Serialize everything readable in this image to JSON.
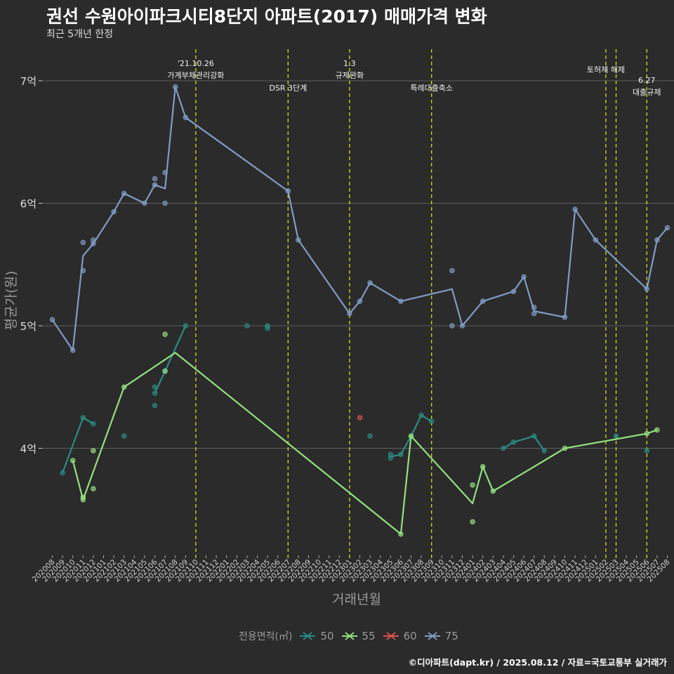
{
  "title": "권선 수원아이파크시티8단지 아파트(2017) 매매가격 변화",
  "subtitle": "최근 5개년 한정",
  "caption": "©디아파트(dapt.kr) / 2025.08.12 / 자료=국토교통부 실거래가",
  "colors": {
    "background": "#2b2b2b",
    "grid": "#5e5e5e",
    "event_line": "#d4dd1f",
    "s50": "#2a8a83",
    "s55": "#93e07f",
    "s60": "#d9534f",
    "s75": "#7f9cc6"
  },
  "chart_data": {
    "type": "line",
    "xlabel": "거래년월",
    "ylabel": "평균가(원)",
    "ylim": [
      3.1,
      7.35
    ],
    "y_ticks": [
      {
        "value": 4,
        "label": "4억"
      },
      {
        "value": 5,
        "label": "5억"
      },
      {
        "value": 6,
        "label": "6억"
      },
      {
        "value": 7,
        "label": "7억"
      }
    ],
    "x_categories": [
      "202008",
      "202009",
      "202010",
      "202011",
      "202012",
      "202101",
      "202102",
      "202103",
      "202104",
      "202105",
      "202106",
      "202107",
      "202108",
      "202109",
      "202110",
      "202111",
      "202112",
      "202201",
      "202202",
      "202203",
      "202204",
      "202205",
      "202206",
      "202207",
      "202208",
      "202209",
      "202210",
      "202211",
      "202212",
      "202301",
      "202302",
      "202303",
      "202304",
      "202305",
      "202306",
      "202307",
      "202308",
      "202309",
      "202310",
      "202311",
      "202312",
      "202401",
      "202402",
      "202403",
      "202404",
      "202405",
      "202406",
      "202407",
      "202408",
      "202409",
      "202410",
      "202411",
      "202412",
      "202501",
      "202502",
      "202503",
      "202504",
      "202505",
      "202506",
      "202507",
      "202508"
    ],
    "grid": true,
    "legend_title": "전용면적(㎡)",
    "legend_position": "bottom",
    "events": [
      {
        "x": "202110",
        "label": "'21.10.26\n가계부채관리강화",
        "row": 1
      },
      {
        "x": "202207",
        "label": "DSR 3단계",
        "row": 2
      },
      {
        "x": "202301",
        "label": "1.3\n규제완화",
        "row": 1
      },
      {
        "x": "202309",
        "label": "특례대출축소",
        "row": 2
      },
      {
        "x": "202502",
        "label": "토허제 해제",
        "row": 1
      },
      {
        "x": "202503",
        "label": "",
        "row": 1
      },
      {
        "x": "202506",
        "label": "6.27\n대출규제",
        "row": 2
      }
    ],
    "series": [
      {
        "name": "50",
        "color": "#2a8a83",
        "line": [
          [
            "202009",
            3.8
          ],
          [
            "202011",
            4.25
          ],
          [
            "202012",
            4.2
          ]
        ],
        "line2": [
          [
            "202106",
            4.45
          ],
          [
            "202107",
            4.63
          ],
          [
            "202109",
            5.0
          ]
        ],
        "line3": [
          [
            "202305",
            3.93
          ],
          [
            "202306",
            3.95
          ],
          [
            "202307",
            4.1
          ],
          [
            "202308",
            4.27
          ],
          [
            "202309",
            4.22
          ]
        ],
        "line4": [
          [
            "202404",
            4.0
          ],
          [
            "202405",
            4.05
          ],
          [
            "202407",
            4.1
          ],
          [
            "202408",
            3.98
          ]
        ],
        "points": [
          [
            "202009",
            3.8
          ],
          [
            "202011",
            4.25
          ],
          [
            "202012",
            4.2
          ],
          [
            "202103",
            4.1
          ],
          [
            "202106",
            4.5
          ],
          [
            "202106",
            4.45
          ],
          [
            "202106",
            4.35
          ],
          [
            "202107",
            4.63
          ],
          [
            "202109",
            5.0
          ],
          [
            "202203",
            5.0
          ],
          [
            "202205",
            5.0
          ],
          [
            "202205",
            4.98
          ],
          [
            "202303",
            4.1
          ],
          [
            "202305",
            3.95
          ],
          [
            "202305",
            3.92
          ],
          [
            "202306",
            3.95
          ],
          [
            "202307",
            4.1
          ],
          [
            "202308",
            4.27
          ],
          [
            "202309",
            4.22
          ],
          [
            "202404",
            4.0
          ],
          [
            "202405",
            4.05
          ],
          [
            "202407",
            4.1
          ],
          [
            "202408",
            3.98
          ],
          [
            "202503",
            4.1
          ],
          [
            "202506",
            3.98
          ]
        ]
      },
      {
        "name": "55",
        "color": "#93e07f",
        "line": [
          [
            "202010",
            3.9
          ],
          [
            "202011",
            3.58
          ],
          [
            "202103",
            4.5
          ],
          [
            "202108",
            4.78
          ],
          [
            "202306",
            3.3
          ],
          [
            "202307",
            4.1
          ],
          [
            "202401",
            3.55
          ],
          [
            "202402",
            3.85
          ],
          [
            "202403",
            3.65
          ],
          [
            "202410",
            4.0
          ],
          [
            "202506",
            4.12
          ],
          [
            "202507",
            4.15
          ]
        ],
        "points": [
          [
            "202010",
            3.9
          ],
          [
            "202011",
            3.58
          ],
          [
            "202011",
            3.6
          ],
          [
            "202012",
            3.98
          ],
          [
            "202012",
            3.67
          ],
          [
            "202103",
            4.5
          ],
          [
            "202107",
            4.93
          ],
          [
            "202107",
            4.63
          ],
          [
            "202306",
            3.3
          ],
          [
            "202307",
            4.1
          ],
          [
            "202401",
            3.7
          ],
          [
            "202401",
            3.4
          ],
          [
            "202402",
            3.85
          ],
          [
            "202403",
            3.65
          ],
          [
            "202410",
            4.0
          ],
          [
            "202506",
            4.12
          ],
          [
            "202507",
            4.15
          ]
        ]
      },
      {
        "name": "60",
        "color": "#d9534f",
        "line": [],
        "points": [
          [
            "202302",
            4.25
          ]
        ]
      },
      {
        "name": "75",
        "color": "#7f9cc6",
        "line": [
          [
            "202008",
            5.05
          ],
          [
            "202010",
            4.8
          ],
          [
            "202011",
            5.57
          ],
          [
            "202012",
            5.67
          ],
          [
            "202102",
            5.93
          ],
          [
            "202103",
            6.08
          ],
          [
            "202105",
            6.0
          ],
          [
            "202106",
            6.15
          ],
          [
            "202107",
            6.12
          ],
          [
            "202108",
            6.95
          ],
          [
            "202109",
            6.7
          ],
          [
            "202207",
            6.1
          ],
          [
            "202208",
            5.7
          ],
          [
            "202301",
            5.1
          ],
          [
            "202302",
            5.2
          ],
          [
            "202303",
            5.35
          ],
          [
            "202306",
            5.2
          ],
          [
            "202311",
            5.3
          ],
          [
            "202312",
            5.0
          ],
          [
            "202402",
            5.2
          ],
          [
            "202405",
            5.28
          ],
          [
            "202406",
            5.4
          ],
          [
            "202407",
            5.12
          ],
          [
            "202410",
            5.07
          ],
          [
            "202411",
            5.95
          ],
          [
            "202501",
            5.7
          ],
          [
            "202506",
            5.3
          ],
          [
            "202507",
            5.7
          ],
          [
            "202508",
            5.8
          ]
        ],
        "points": [
          [
            "202008",
            5.05
          ],
          [
            "202010",
            4.8
          ],
          [
            "202011",
            5.68
          ],
          [
            "202011",
            5.45
          ],
          [
            "202012",
            5.7
          ],
          [
            "202012",
            5.67
          ],
          [
            "202102",
            5.93
          ],
          [
            "202103",
            6.08
          ],
          [
            "202105",
            6.0
          ],
          [
            "202106",
            6.2
          ],
          [
            "202106",
            6.15
          ],
          [
            "202107",
            6.25
          ],
          [
            "202107",
            6.0
          ],
          [
            "202108",
            6.95
          ],
          [
            "202109",
            6.7
          ],
          [
            "202207",
            6.1
          ],
          [
            "202208",
            5.7
          ],
          [
            "202301",
            5.1
          ],
          [
            "202302",
            5.2
          ],
          [
            "202303",
            5.35
          ],
          [
            "202306",
            5.2
          ],
          [
            "202311",
            5.45
          ],
          [
            "202311",
            5.0
          ],
          [
            "202312",
            5.0
          ],
          [
            "202402",
            5.2
          ],
          [
            "202405",
            5.28
          ],
          [
            "202406",
            5.4
          ],
          [
            "202407",
            5.15
          ],
          [
            "202407",
            5.1
          ],
          [
            "202410",
            5.07
          ],
          [
            "202411",
            5.95
          ],
          [
            "202501",
            5.7
          ],
          [
            "202506",
            5.3
          ],
          [
            "202507",
            5.7
          ],
          [
            "202508",
            5.8
          ]
        ]
      }
    ]
  }
}
